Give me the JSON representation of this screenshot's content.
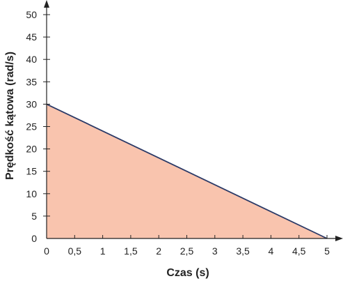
{
  "chart_data": {
    "type": "area",
    "x": [
      0,
      5
    ],
    "series": [
      {
        "values": [
          30,
          0
        ]
      }
    ],
    "xlabel": "Czas (s)",
    "ylabel": "Prędkość kątowa  (rad/s)",
    "xlim": [
      0,
      5
    ],
    "ylim": [
      0,
      50
    ],
    "x_ticks": [
      0,
      0.5,
      1,
      1.5,
      2,
      2.5,
      3,
      3.5,
      4,
      4.5,
      5
    ],
    "x_tick_labels": [
      "0",
      "0,5",
      "1",
      "1,5",
      "2",
      "2,5",
      "3",
      "3,5",
      "4",
      "4,5",
      "5"
    ],
    "y_ticks": [
      0,
      5,
      10,
      15,
      20,
      25,
      30,
      35,
      40,
      45,
      50
    ],
    "y_tick_labels": [
      "0",
      "5",
      "10",
      "15",
      "20",
      "25",
      "30",
      "35",
      "40",
      "45",
      "50"
    ],
    "grid": false,
    "colors": {
      "fill": "#f9c4ae",
      "line": "#2b3a67",
      "axis": "#222222"
    }
  }
}
